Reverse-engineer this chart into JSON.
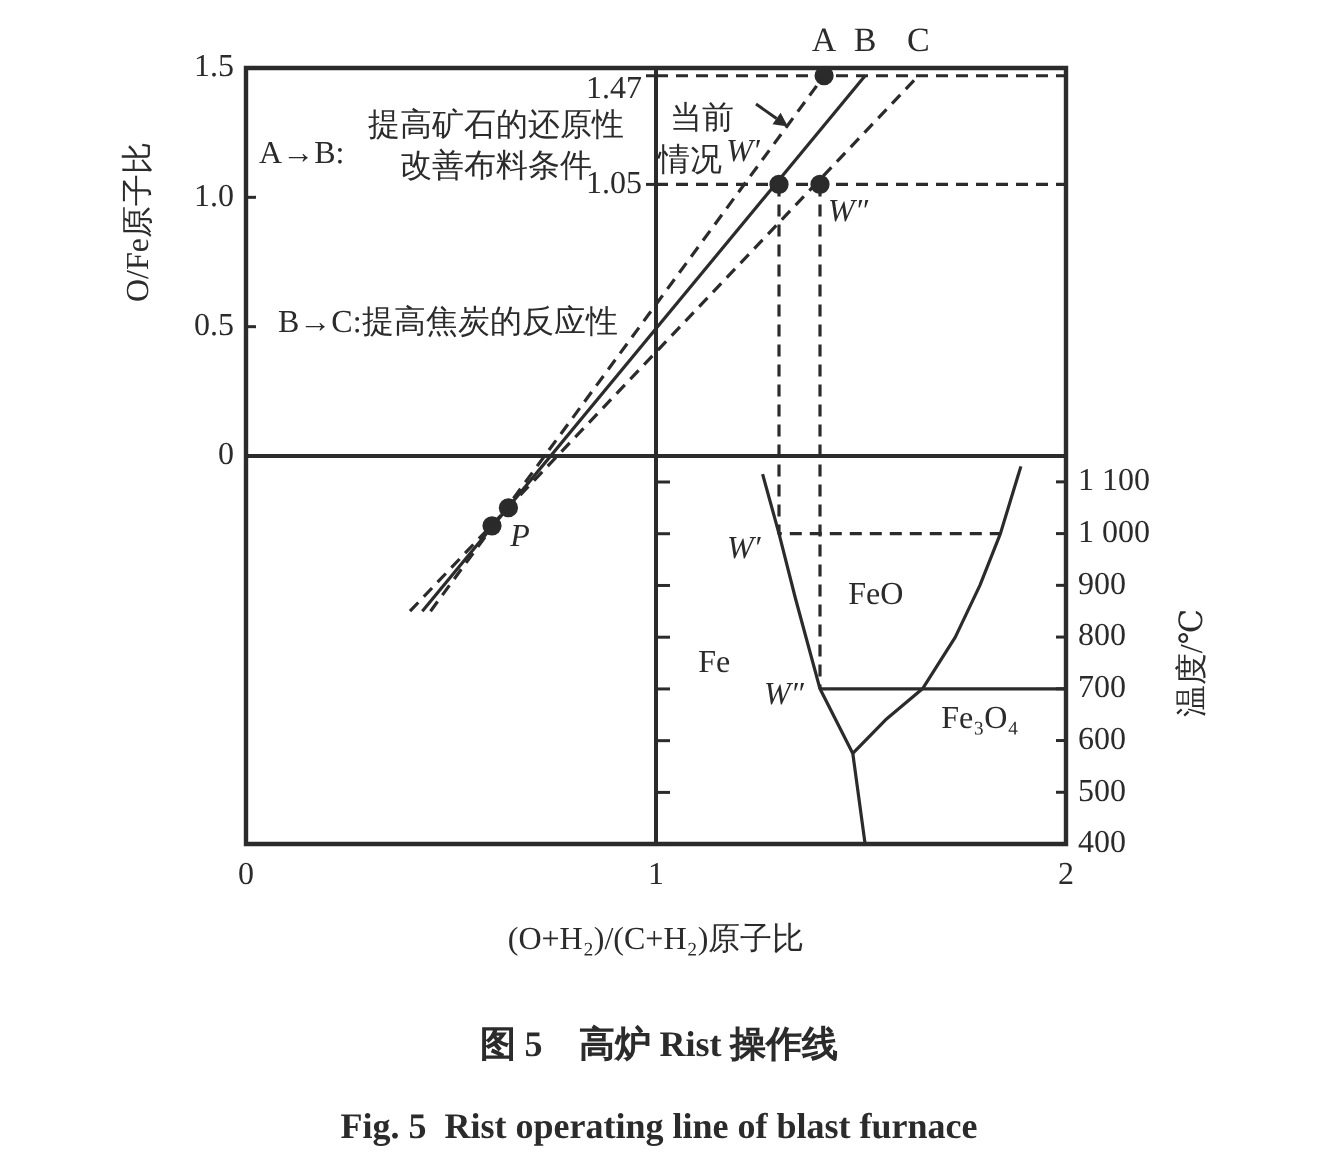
{
  "chart_data": {
    "type": "line",
    "title": "图 5　高炉 Rist 操作线",
    "subtitle": "Fig. 5  Rist operating line of blast furnace",
    "xlabel": "(O+H₂)/(C+H₂)原子比",
    "ylabel": "O/Fe原子比",
    "y2label": "温度/℃",
    "xlim": [
      0,
      2
    ],
    "xticks": [
      0,
      1,
      2
    ],
    "ylim": [
      -1.5,
      1.5
    ],
    "yticks": [
      0,
      0.5,
      {
        "value": 1,
        "label": "1.0"
      },
      1.5
    ],
    "y2lim": [
      400,
      1900
    ],
    "y2ticks": [
      400,
      500,
      600,
      700,
      800,
      900,
      {
        "value": 1000,
        "label": "1 000"
      },
      {
        "value": 1100,
        "label": "1 100"
      }
    ],
    "series": [
      {
        "name": "A",
        "color": "#2b2b2b",
        "line_style": "dashed",
        "x": [
          0.45,
          1.41
        ],
        "values": [
          -0.6,
          1.47
        ]
      },
      {
        "name": "B",
        "color": "#2b2b2b",
        "line_style": "solid",
        "x": [
          0.43,
          1.51
        ],
        "values": [
          -0.6,
          1.47
        ]
      },
      {
        "name": "C",
        "color": "#2b2b2b",
        "line_style": "dashed",
        "x": [
          0.4,
          1.64
        ],
        "values": [
          -0.6,
          1.47
        ]
      },
      {
        "color": "#2b2b2b",
        "line_style": "dashed",
        "x": [
          1,
          2
        ],
        "values": [
          1.47,
          1.47
        ],
        "value_labels": [
          "1.47",
          null
        ]
      },
      {
        "color": "#2b2b2b",
        "line_style": "dashed",
        "x": [
          1,
          2
        ],
        "values": [
          1.05,
          1.05
        ],
        "value_labels": [
          "1.05",
          null
        ]
      },
      {
        "color": "#2b2b2b",
        "line_style": "dashed",
        "x": [
          1.3,
          1.3,
          1.84
        ],
        "values": [
          1.05,
          -0.3,
          -0.3
        ]
      },
      {
        "color": "#2b2b2b",
        "line_style": "dashed",
        "x": [
          1.4,
          1.4
        ],
        "values": [
          1.05,
          -0.9
        ]
      },
      {
        "axis": "y2",
        "color": "#2b2b2b",
        "line_style": "solid",
        "x": [
          1.4,
          2
        ],
        "values": [
          700,
          700
        ]
      },
      {
        "axis": "y2",
        "color": "#2b2b2b",
        "line_style": "solid",
        "x": [
          1.26,
          1.3,
          1.34,
          1.4,
          1.48,
          1.51
        ],
        "values": [
          1115,
          1000,
          875,
          700,
          575,
          400
        ]
      },
      {
        "axis": "y2",
        "color": "#2b2b2b",
        "line_style": "solid",
        "x": [
          1.48,
          1.56,
          1.65,
          1.73,
          1.79,
          1.84,
          1.89
        ],
        "values": [
          575,
          640,
          700,
          800,
          900,
          1000,
          1130
        ]
      },
      {
        "type": "scatter",
        "color": "#2b2b2b",
        "marker": "circle",
        "x": [
          1.41,
          1.3,
          1.4,
          0.6,
          0.64
        ],
        "values": [
          1.47,
          1.05,
          1.05,
          -0.27,
          -0.2
        ]
      }
    ],
    "ref_lines": [
      {
        "axis": "x",
        "value": 1,
        "color": "#2b2b2b"
      },
      {
        "axis": "y",
        "value": 0,
        "color": "#2b2b2b"
      }
    ],
    "annotations": [
      "A→B:",
      "提高矿石的还原性",
      "改善布料条件",
      "B→C:提高焦炭的反应性",
      "当前",
      "情况",
      {
        "text": "W′",
        "x": 1.3,
        "y": 1.05
      },
      {
        "text": "W″",
        "x": 1.4,
        "y": 1.05
      },
      {
        "text": "P",
        "x": 0.6,
        "y": -0.27
      },
      "Fe",
      "FeO",
      "Fe₃O₄",
      "W′",
      "W″"
    ]
  }
}
